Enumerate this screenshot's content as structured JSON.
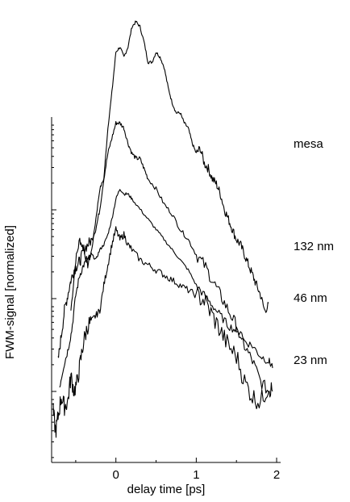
{
  "chart_data": {
    "type": "line",
    "xlabel": "delay time [ps]",
    "ylabel": "FWM-signal [normalized]",
    "xlim": [
      -0.8,
      2.05
    ],
    "x_ticks": [
      0,
      1,
      2
    ],
    "x_tick_labels": [
      "0",
      "1",
      "2"
    ],
    "y_scale": "log",
    "grid": false,
    "line_color": "#000000",
    "series": [
      {
        "name": "mesa",
        "x": [
          -0.56,
          -0.5,
          -0.45,
          -0.4,
          -0.35,
          -0.3,
          -0.25,
          -0.2,
          -0.15,
          -0.1,
          -0.05,
          0.0,
          0.05,
          0.1,
          0.15,
          0.2,
          0.25,
          0.3,
          0.35,
          0.4,
          0.45,
          0.5,
          0.55,
          0.6,
          0.65,
          0.7,
          0.75,
          0.8,
          0.85,
          0.9,
          0.95,
          1.0,
          1.05,
          1.1,
          1.15,
          1.2,
          1.25,
          1.3,
          1.35,
          1.4,
          1.45,
          1.5,
          1.55,
          1.6,
          1.65,
          1.7,
          1.75,
          1.8,
          1.85,
          1.9
        ],
        "y": [
          3.0,
          4.0,
          4.4,
          4.2,
          3.9,
          4.2,
          4.8,
          5.4,
          5.6,
          6.6,
          7.3,
          8.1,
          8.2,
          8.0,
          8.2,
          8.6,
          8.7,
          8.6,
          8.3,
          7.9,
          7.9,
          8.1,
          8.0,
          7.8,
          7.4,
          7.1,
          6.9,
          6.9,
          6.7,
          6.6,
          6.3,
          6.1,
          6.2,
          5.9,
          5.8,
          5.6,
          5.5,
          5.3,
          5.0,
          4.8,
          4.6,
          4.4,
          4.3,
          4.1,
          3.9,
          3.7,
          3.5,
          3.3,
          3.0,
          3.1
        ]
      },
      {
        "name": "132 nm",
        "x": [
          -0.72,
          -0.68,
          -0.64,
          -0.6,
          -0.56,
          -0.52,
          -0.48,
          -0.44,
          -0.4,
          -0.35,
          -0.3,
          -0.25,
          -0.2,
          -0.15,
          -0.1,
          -0.05,
          0.0,
          0.05,
          0.1,
          0.15,
          0.2,
          0.25,
          0.3,
          0.35,
          0.4,
          0.5,
          0.6,
          0.7,
          0.8,
          0.9,
          1.0,
          1.1,
          1.2,
          1.3,
          1.4,
          1.5,
          1.6,
          1.7,
          1.8,
          1.9
        ],
        "y": [
          2.0,
          2.5,
          3.0,
          3.3,
          3.6,
          3.8,
          3.9,
          4.0,
          4.2,
          4.3,
          4.4,
          4.6,
          5.0,
          5.6,
          6.1,
          6.4,
          6.7,
          6.7,
          6.6,
          6.3,
          6.1,
          6.0,
          6.0,
          5.8,
          5.6,
          5.4,
          5.1,
          4.9,
          4.6,
          4.4,
          4.1,
          3.9,
          3.6,
          3.3,
          3.0,
          2.7,
          2.3,
          2.0,
          1.6,
          1.4
        ]
      },
      {
        "name": "46 nm",
        "x": [
          -0.7,
          -0.65,
          -0.6,
          -0.55,
          -0.5,
          -0.45,
          -0.4,
          -0.35,
          -0.3,
          -0.25,
          -0.2,
          -0.15,
          -0.1,
          -0.05,
          0.0,
          0.05,
          0.1,
          0.15,
          0.2,
          0.3,
          0.4,
          0.5,
          0.6,
          0.7,
          0.8,
          0.9,
          1.0,
          1.1,
          1.2,
          1.3,
          1.4,
          1.5,
          1.6,
          1.7,
          1.8,
          1.9,
          1.95
        ],
        "y": [
          1.5,
          1.9,
          2.2,
          2.6,
          3.3,
          3.7,
          3.9,
          4.0,
          4.1,
          4.0,
          4.2,
          4.3,
          4.5,
          4.8,
          5.2,
          5.4,
          5.3,
          5.3,
          5.2,
          5.0,
          4.8,
          4.6,
          4.4,
          4.2,
          4.0,
          3.8,
          3.5,
          3.3,
          3.1,
          2.9,
          2.7,
          2.6,
          2.4,
          2.3,
          2.1,
          2.0,
          1.9
        ]
      },
      {
        "name": "23 nm",
        "x": [
          -0.78,
          -0.75,
          -0.72,
          -0.68,
          -0.64,
          -0.6,
          -0.56,
          -0.52,
          -0.48,
          -0.44,
          -0.4,
          -0.35,
          -0.3,
          -0.25,
          -0.2,
          -0.15,
          -0.1,
          -0.05,
          0.0,
          0.05,
          0.1,
          0.15,
          0.2,
          0.3,
          0.4,
          0.5,
          0.6,
          0.7,
          0.8,
          0.9,
          1.0,
          1.1,
          1.2,
          1.3,
          1.4,
          1.5,
          1.6,
          1.7,
          1.8,
          1.9,
          1.95
        ],
        "y": [
          1.0,
          0.6,
          0.9,
          1.3,
          1.1,
          1.2,
          1.7,
          1.4,
          1.6,
          2.0,
          2.4,
          2.7,
          2.8,
          2.9,
          3.0,
          3.5,
          3.9,
          4.3,
          4.6,
          4.4,
          4.5,
          4.3,
          4.2,
          4.0,
          3.9,
          3.8,
          3.7,
          3.6,
          3.5,
          3.4,
          3.3,
          3.2,
          2.9,
          2.6,
          2.3,
          2.1,
          1.6,
          1.3,
          1.2,
          1.5,
          1.4
        ]
      }
    ]
  }
}
